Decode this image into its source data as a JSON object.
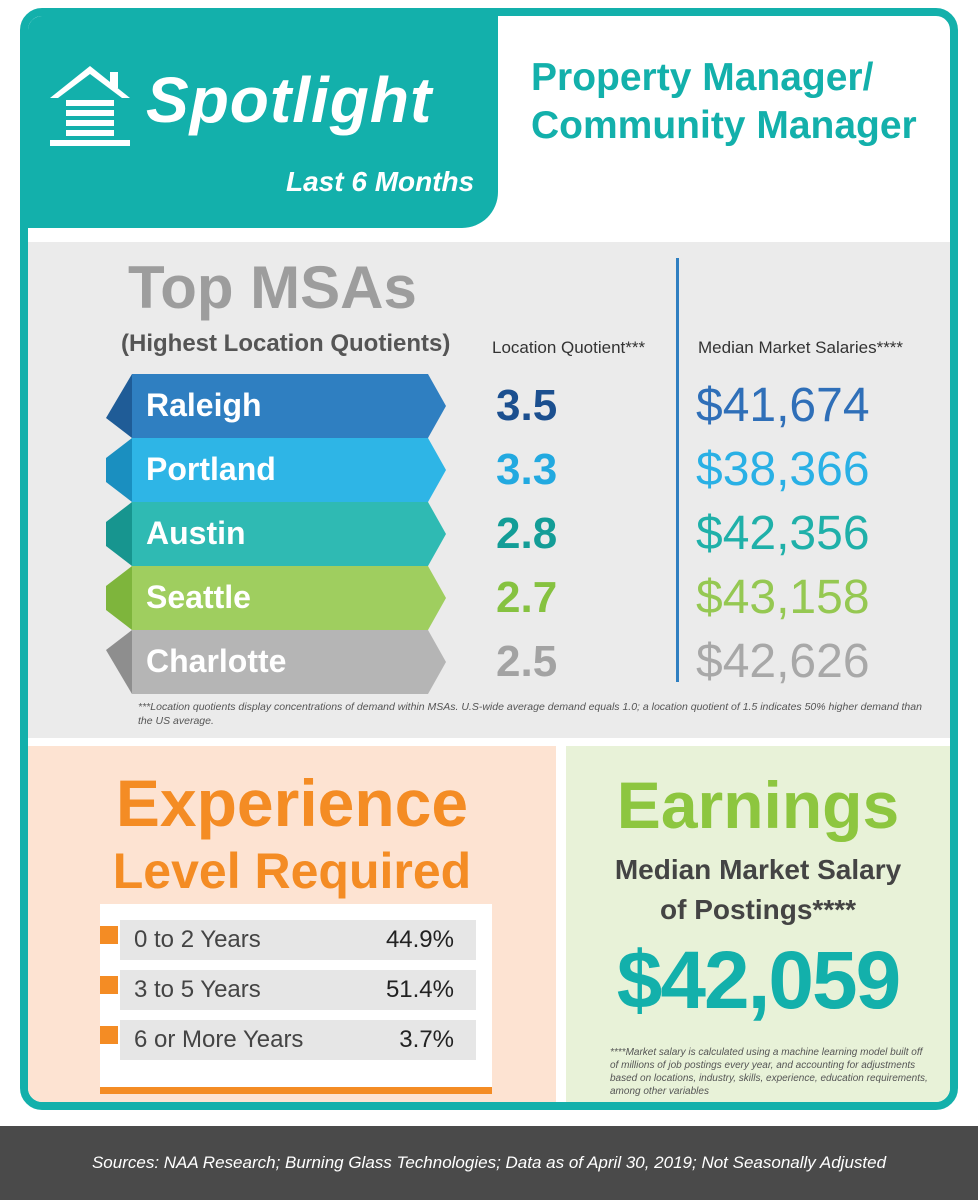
{
  "header": {
    "spotlight": "Spotlight",
    "period": "Last 6 Months",
    "job_title_line1": "Property Manager/",
    "job_title_line2": "Community Manager"
  },
  "msas": {
    "heading": "Top MSAs",
    "subheading": "(Highest Location Quotients)",
    "lq_header": "Location Quotient***",
    "salary_header": "Median Market Salaries****",
    "rows": [
      {
        "city": "Raleigh",
        "lq": "3.5",
        "salary": "$41,674",
        "color": "#2f7fc1",
        "dark": "#1f5c97",
        "text_color": "#1b4f8f",
        "salary_color": "#2f6fb8"
      },
      {
        "city": "Portland",
        "lq": "3.3",
        "salary": "$38,366",
        "color": "#2eb5e6",
        "dark": "#1a8fc0",
        "text_color": "#22a9e0",
        "salary_color": "#29b0e5"
      },
      {
        "city": "Austin",
        "lq": "2.8",
        "salary": "$42,356",
        "color": "#2fbab3",
        "dark": "#17958f",
        "text_color": "#139d97",
        "salary_color": "#1fb0a9"
      },
      {
        "city": "Seattle",
        "lq": "2.7",
        "salary": "$43,158",
        "color": "#9fce5f",
        "dark": "#7eb53c",
        "text_color": "#86c240",
        "salary_color": "#95c852"
      },
      {
        "city": "Charlotte",
        "lq": "2.5",
        "salary": "$42,626",
        "color": "#b5b5b5",
        "dark": "#8e8e8e",
        "text_color": "#a3a3a3",
        "salary_color": "#a8a8a8"
      }
    ],
    "note": "***Location quotients display concentrations of demand within MSAs. U.S-wide average demand equals 1.0; a location quotient of 1.5 indicates 50% higher demand than the US average."
  },
  "experience": {
    "title_line1": "Experience",
    "title_line2": "Level Required",
    "rows": [
      {
        "label": "0 to 2 Years",
        "value": "44.9%"
      },
      {
        "label": "3 to 5 Years",
        "value": "51.4%"
      },
      {
        "label": "6 or More Years",
        "value": "3.7%"
      }
    ],
    "accent": "#f48c24"
  },
  "earnings": {
    "title": "Earnings",
    "sub_line1": "Median Market Salary",
    "sub_line2": "of Postings****",
    "value": "$42,059",
    "note": "****Market salary is calculated using a machine learning model built off of millions of job postings every year, and accounting for adjustments based on locations, industry, skills, experience, education requirements, among other variables"
  },
  "footer": {
    "sources": "Sources:  NAA Research; Burning Glass Technologies; Data as of April 30, 2019; Not Seasonally Adjusted"
  },
  "colors": {
    "teal": "#13b0ab",
    "orange": "#f48c24",
    "green": "#8dc63f",
    "gray_panel": "#ebebeb",
    "footer": "#4a4a4a"
  },
  "icons": {
    "logo": "house-icon"
  }
}
